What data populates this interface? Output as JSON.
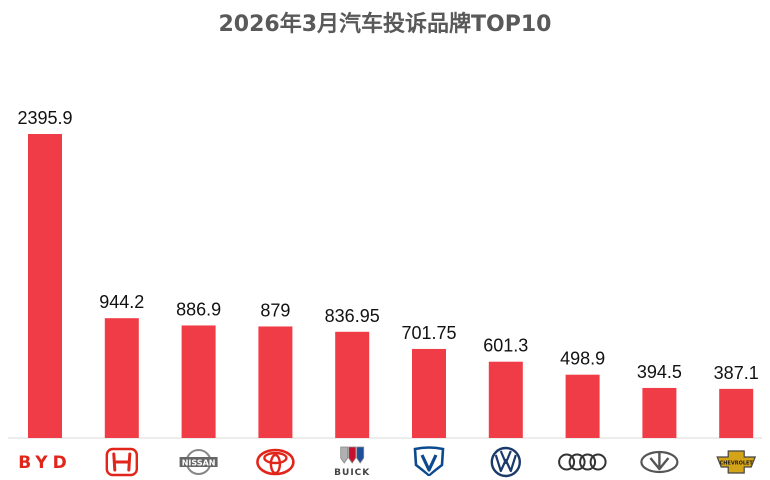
{
  "chart_data": {
    "type": "bar",
    "title": "2026年3月汽车投诉品牌TOP10",
    "categories": [
      "BYD",
      "Honda",
      "Nissan",
      "Toyota",
      "Buick",
      "Changan",
      "Volkswagen",
      "Audi",
      "Chery",
      "Chevrolet"
    ],
    "values": [
      2395.9,
      944.2,
      886.9,
      879,
      836.95,
      701.75,
      601.3,
      498.9,
      394.5,
      387.1
    ],
    "value_labels": [
      "2395.9",
      "944.2",
      "886.9",
      "879",
      "836.95",
      "701.75",
      "601.3",
      "498.9",
      "394.5",
      "387.1"
    ],
    "logo_text": {
      "byd": "BYD",
      "nissan": "NISSAN",
      "buick": "BUICK",
      "chevrolet": "CHEVROLET"
    },
    "colors": {
      "bar": "#f03c46",
      "axis": "#d9d9d9",
      "logo_red": "#e1251b",
      "logo_blue": "#0c4a8f",
      "logo_gray": "#888888"
    },
    "ylim": [
      0,
      2395.9
    ],
    "grid": false,
    "legend": "none"
  }
}
